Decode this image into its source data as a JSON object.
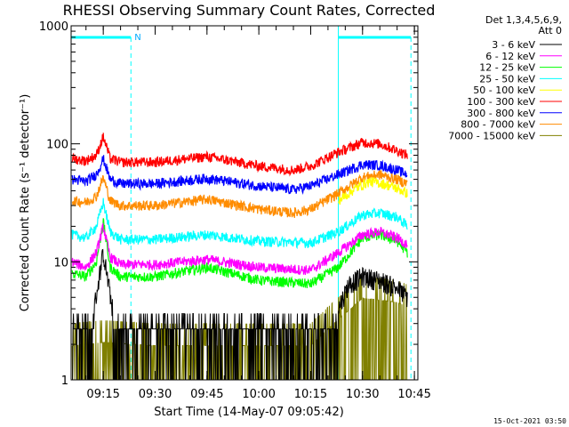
{
  "chart_data": {
    "type": "line",
    "title": "RHESSI Observing Summary Count Rates, Corrected",
    "xlabel": "Start Time (14-May-07 09:05:42)",
    "ylabel": "Corrected Count Rate (s⁻¹ detector⁻¹)",
    "yscale": "log",
    "xlim": [
      "09:05:42",
      "10:46:00"
    ],
    "ylim": [
      1,
      1000
    ],
    "x_ticks": [
      "09:15",
      "09:30",
      "09:45",
      "10:00",
      "10:15",
      "10:30",
      "10:45"
    ],
    "y_ticks": [
      "1",
      "10",
      "100",
      "1000"
    ],
    "legend_header": [
      "Det 1,3,4,5,6,9,",
      "Att 0"
    ],
    "legend_placement": "right",
    "grid": false,
    "timestamp": "15-Oct-2021 03:50",
    "night_marker": "N",
    "spacecraft_night": [
      {
        "start": "09:05:42",
        "end": "09:23:00"
      },
      {
        "start": "10:23:00",
        "end": "10:44:00"
      }
    ],
    "series": [
      {
        "name": "3 - 6 keV",
        "color": "#000000",
        "x": [
          "09:06",
          "09:10",
          "09:12",
          "09:14",
          "09:15",
          "09:16",
          "09:18",
          "09:22",
          "09:30",
          "09:45",
          "10:00",
          "10:15",
          "10:20",
          "10:23",
          "10:26",
          "10:30",
          "10:35",
          "10:40",
          "10:43"
        ],
        "y": [
          2.6,
          2.6,
          3.5,
          8,
          12,
          8,
          3.5,
          2.6,
          2.6,
          2.5,
          2.4,
          2.4,
          2.6,
          4,
          6.5,
          7.5,
          7,
          6,
          5
        ]
      },
      {
        "name": "6 - 12 keV",
        "color": "#ff00ff",
        "x": [
          "09:06",
          "09:10",
          "09:13",
          "09:15",
          "09:17",
          "09:20",
          "09:30",
          "09:45",
          "10:00",
          "10:15",
          "10:23",
          "10:30",
          "10:35",
          "10:40",
          "10:43"
        ],
        "y": [
          10,
          9,
          12,
          20,
          11,
          9.5,
          9.5,
          10.5,
          9,
          8.5,
          12,
          17,
          18,
          16,
          14
        ]
      },
      {
        "name": "12 - 25 keV",
        "color": "#00ff00",
        "x": [
          "09:06",
          "09:10",
          "09:13",
          "09:15",
          "09:17",
          "09:20",
          "09:30",
          "09:45",
          "10:00",
          "10:15",
          "10:23",
          "10:30",
          "10:35",
          "10:40",
          "10:43"
        ],
        "y": [
          8,
          7.5,
          10,
          22,
          9,
          7.5,
          7.5,
          9,
          7,
          6.5,
          9,
          16,
          17,
          15,
          12
        ]
      },
      {
        "name": "25 - 50 keV",
        "color": "#00ffff",
        "x": [
          "09:06",
          "09:10",
          "09:13",
          "09:15",
          "09:17",
          "09:20",
          "09:30",
          "09:45",
          "10:00",
          "10:15",
          "10:23",
          "10:30",
          "10:35",
          "10:40",
          "10:43"
        ],
        "y": [
          17,
          16,
          20,
          32,
          18,
          15.5,
          15.5,
          17,
          15,
          14.5,
          18,
          25,
          26,
          24,
          20
        ]
      },
      {
        "name": "50 - 100 keV",
        "color": "#ffff00",
        "x": [
          "10:23",
          "10:28",
          "10:32",
          "10:36",
          "10:40",
          "10:43"
        ],
        "y": [
          33,
          42,
          48,
          46,
          42,
          38
        ]
      },
      {
        "name": "100 - 300 keV",
        "color": "#ff0000",
        "x": [
          "09:06",
          "09:10",
          "09:13",
          "09:15",
          "09:17",
          "09:20",
          "09:30",
          "09:45",
          "10:00",
          "10:10",
          "10:15",
          "10:23",
          "10:30",
          "10:35",
          "10:40",
          "10:43"
        ],
        "y": [
          75,
          72,
          80,
          115,
          75,
          70,
          70,
          78,
          65,
          60,
          65,
          85,
          103,
          100,
          88,
          80
        ]
      },
      {
        "name": "300 - 800 keV",
        "color": "#0000ff",
        "x": [
          "09:06",
          "09:10",
          "09:13",
          "09:15",
          "09:17",
          "09:20",
          "09:30",
          "09:45",
          "10:00",
          "10:10",
          "10:15",
          "10:23",
          "10:30",
          "10:35",
          "10:40",
          "10:43"
        ],
        "y": [
          50,
          48,
          55,
          75,
          50,
          46,
          46,
          51,
          44,
          41,
          44,
          55,
          67,
          66,
          60,
          55
        ]
      },
      {
        "name": "800 - 7000 keV",
        "color": "#ff8c00",
        "x": [
          "09:06",
          "09:10",
          "09:13",
          "09:15",
          "09:17",
          "09:20",
          "09:30",
          "09:45",
          "10:00",
          "10:10",
          "10:15",
          "10:23",
          "10:30",
          "10:35",
          "10:40",
          "10:43"
        ],
        "y": [
          33,
          32,
          36,
          52,
          33,
          30,
          30,
          34,
          28,
          26,
          28,
          38,
          52,
          55,
          50,
          46
        ]
      },
      {
        "name": "7000 - 15000 keV",
        "color": "#808000",
        "x": [
          "09:06",
          "09:15",
          "09:30",
          "09:45",
          "10:00",
          "10:15",
          "10:23",
          "10:30",
          "10:40",
          "10:43"
        ],
        "y": [
          1.5,
          1.6,
          1.5,
          1.5,
          1.5,
          1.5,
          2.5,
          3.8,
          3.5,
          3.2
        ]
      }
    ]
  }
}
